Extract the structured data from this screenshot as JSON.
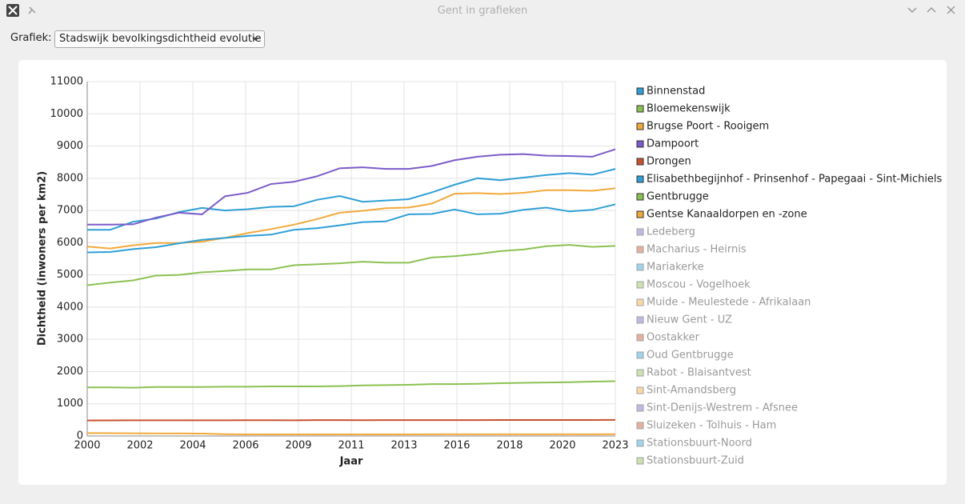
{
  "window_title": "Gent in grafieken",
  "toolbar": {
    "label": "Grafiek:",
    "selected": "Stadswijk bevolkingsdichtheid evolutie"
  },
  "chart_data": {
    "type": "line",
    "xlabel": "Jaar",
    "ylabel": "Dichtheid (inwoners per km2)",
    "x": [
      2000,
      2001,
      2002,
      2003,
      2004,
      2005,
      2006,
      2007,
      2008,
      2009,
      2010,
      2011,
      2012,
      2013,
      2014,
      2015,
      2016,
      2017,
      2018,
      2019,
      2020,
      2021,
      2022,
      2023
    ],
    "xlim": [
      2000,
      2023
    ],
    "xticks": [
      2000,
      {
        "value": 2002.3,
        "label": "2002"
      },
      {
        "value": 2004.6,
        "label": "2004"
      },
      {
        "value": 2006.9,
        "label": "2006"
      },
      {
        "value": 2009.2,
        "label": "2009"
      },
      {
        "value": 2011.5,
        "label": "2011"
      },
      {
        "value": 2013.8,
        "label": "2013"
      },
      {
        "value": 2016.1,
        "label": "2016"
      },
      {
        "value": 2018.4,
        "label": "2018"
      },
      {
        "value": 2020.7,
        "label": "2020"
      },
      2023
    ],
    "ylim": [
      0,
      11000
    ],
    "yticks": [
      0,
      1000,
      2000,
      3000,
      4000,
      5000,
      6000,
      7000,
      8000,
      9000,
      10000,
      11000
    ],
    "grid": true,
    "legend": "right",
    "series": [
      {
        "name": "Binnenstad",
        "color": "#2f9fd6",
        "visible": true,
        "values": [
          6400,
          6400,
          6650,
          6750,
          6950,
          7080,
          7000,
          7040,
          7110,
          7130,
          7330,
          7450,
          7270,
          7310,
          7350,
          7560,
          7800,
          8000,
          7940,
          8020,
          8100,
          8160,
          8110,
          8290
        ]
      },
      {
        "name": "Bloemekenswijk",
        "color": "#8cc152",
        "visible": true,
        "values": [
          4680,
          4760,
          4830,
          4980,
          5000,
          5080,
          5120,
          5170,
          5170,
          5300,
          5330,
          5360,
          5410,
          5380,
          5380,
          5540,
          5580,
          5650,
          5740,
          5790,
          5890,
          5930,
          5870,
          5900
        ]
      },
      {
        "name": "Brugse Poort - Rooigem",
        "color": "#f2a93b",
        "visible": true,
        "values": [
          5880,
          5820,
          5920,
          5990,
          5990,
          6030,
          6150,
          6300,
          6420,
          6560,
          6730,
          6930,
          6990,
          7070,
          7090,
          7210,
          7520,
          7540,
          7510,
          7550,
          7630,
          7630,
          7610,
          7690
        ]
      },
      {
        "name": "Dampoort",
        "color": "#7b5cc9",
        "visible": true,
        "values": [
          6560,
          6560,
          6570,
          6780,
          6930,
          6880,
          7440,
          7550,
          7820,
          7890,
          8060,
          8310,
          8340,
          8290,
          8290,
          8380,
          8560,
          8670,
          8730,
          8750,
          8700,
          8690,
          8670,
          8900
        ]
      },
      {
        "name": "Drongen",
        "color": "#c8522e",
        "visible": true,
        "values": [
          480,
          485,
          487,
          487,
          487,
          487,
          488,
          490,
          490,
          488,
          492,
          492,
          490,
          492,
          492,
          492,
          492,
          494,
          496,
          496,
          496,
          498,
          498,
          500
        ]
      },
      {
        "name": "Elisabethbegijnhof - Prinsenhof - Papegaai - Sint-Michiels",
        "color": "#2f9fd6",
        "visible": true,
        "values": [
          5700,
          5710,
          5800,
          5860,
          5980,
          6090,
          6150,
          6210,
          6250,
          6400,
          6450,
          6540,
          6640,
          6660,
          6880,
          6890,
          7030,
          6880,
          6900,
          7020,
          7090,
          6970,
          7020,
          7190
        ]
      },
      {
        "name": "Gentbrugge",
        "color": "#8cc152",
        "visible": true,
        "values": [
          1510,
          1510,
          1500,
          1520,
          1520,
          1520,
          1530,
          1530,
          1540,
          1540,
          1540,
          1550,
          1570,
          1580,
          1590,
          1610,
          1610,
          1620,
          1640,
          1650,
          1660,
          1670,
          1690,
          1700
        ]
      },
      {
        "name": "Gentse Kanaaldorpen en -zone",
        "color": "#f2a93b",
        "visible": true,
        "values": [
          90,
          88,
          85,
          80,
          80,
          75,
          55,
          50,
          50,
          50,
          50,
          50,
          50,
          50,
          50,
          52,
          52,
          52,
          52,
          52,
          52,
          53,
          54,
          55
        ]
      },
      {
        "name": "Ledeberg",
        "color": "#7b5cc9",
        "visible": false
      },
      {
        "name": "Macharius - Heirnis",
        "color": "#c8522e",
        "visible": false
      },
      {
        "name": "Mariakerke",
        "color": "#2f9fd6",
        "visible": false
      },
      {
        "name": "Moscou - Vogelhoek",
        "color": "#8cc152",
        "visible": false
      },
      {
        "name": "Muide - Meulestede - Afrikalaan",
        "color": "#f2a93b",
        "visible": false
      },
      {
        "name": "Nieuw Gent - UZ",
        "color": "#7b5cc9",
        "visible": false
      },
      {
        "name": "Oostakker",
        "color": "#c8522e",
        "visible": false
      },
      {
        "name": "Oud Gentbrugge",
        "color": "#2f9fd6",
        "visible": false
      },
      {
        "name": "Rabot - Blaisantvest",
        "color": "#8cc152",
        "visible": false
      },
      {
        "name": "Sint-Amandsberg",
        "color": "#f2a93b",
        "visible": false
      },
      {
        "name": "Sint-Denijs-Westrem - Afsnee",
        "color": "#7b5cc9",
        "visible": false
      },
      {
        "name": "Sluizeken - Tolhuis - Ham",
        "color": "#c8522e",
        "visible": false
      },
      {
        "name": "Stationsbuurt-Noord",
        "color": "#2f9fd6",
        "visible": false
      },
      {
        "name": "Stationsbuurt-Zuid",
        "color": "#8cc152",
        "visible": false
      }
    ]
  }
}
